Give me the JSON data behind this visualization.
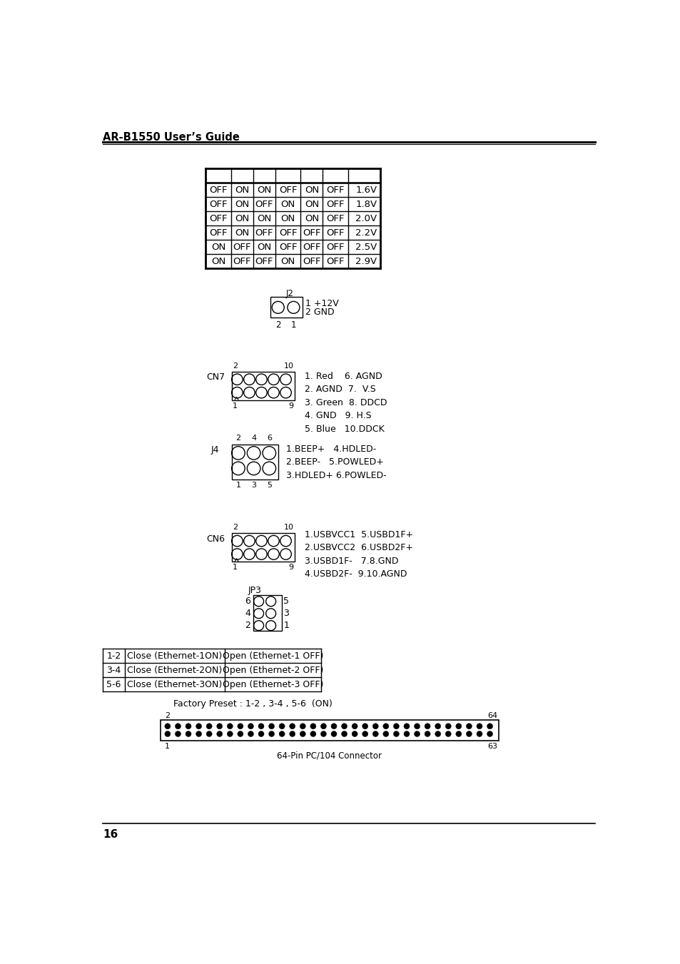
{
  "header_title": "AR-B1550 User’s Guide",
  "page_number": "16",
  "bg_color": "#ffffff",
  "table1_rows": [
    [
      "OFF",
      "ON",
      "ON",
      "OFF",
      "ON",
      "OFF",
      "1.6V"
    ],
    [
      "OFF",
      "ON",
      "OFF",
      "ON",
      "ON",
      "OFF",
      "1.8V"
    ],
    [
      "OFF",
      "ON",
      "ON",
      "ON",
      "ON",
      "OFF",
      "2.0V"
    ],
    [
      "OFF",
      "ON",
      "OFF",
      "OFF",
      "OFF",
      "OFF",
      "2.2V"
    ],
    [
      "ON",
      "OFF",
      "ON",
      "OFF",
      "OFF",
      "OFF",
      "2.5V"
    ],
    [
      "ON",
      "OFF",
      "OFF",
      "ON",
      "OFF",
      "OFF",
      "2.9V"
    ]
  ],
  "jp3_row_labels_left": [
    "6",
    "4",
    "2"
  ],
  "jp3_row_labels_right": [
    "5",
    "3",
    "1"
  ],
  "jp3_table_rows": [
    [
      "1-2",
      "Close (Ethernet-1ON)",
      "Open (Ethernet-1 OFF)"
    ],
    [
      "3-4",
      "Close (Ethernet-2ON)",
      "Open (Ethernet-2 OFF)"
    ],
    [
      "5-6",
      "Close (Ethernet-3ON)",
      "Open (Ethernet-3 OFF)"
    ]
  ],
  "factory_preset": "Factory Preset : 1-2 , 3-4 , 5-6  (ON)",
  "pc104_caption": "64-Pin PC/104 Connector",
  "pc104_cols": 32,
  "pc104_rows": 2
}
